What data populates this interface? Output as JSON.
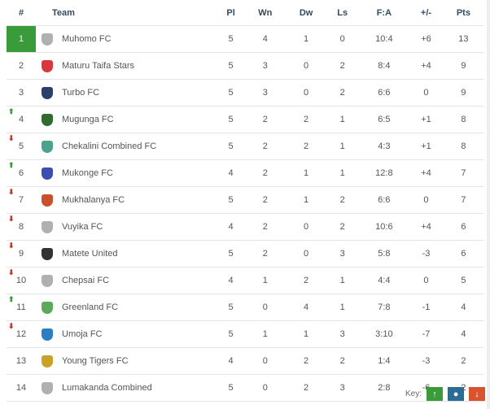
{
  "headers": [
    "#",
    "Team",
    "Pl",
    "Wn",
    "Dw",
    "Ls",
    "F:A",
    "+/-",
    "Pts"
  ],
  "rows": [
    {
      "pos": "1",
      "team": "Muhomo FC",
      "pl": "5",
      "w": "4",
      "d": "1",
      "l": "0",
      "fa": "10:4",
      "gd": "+6",
      "pts": "13",
      "move": "",
      "crest": "#b0b0b0"
    },
    {
      "pos": "2",
      "team": "Maturu Taifa Stars",
      "pl": "5",
      "w": "3",
      "d": "0",
      "l": "2",
      "fa": "8:4",
      "gd": "+4",
      "pts": "9",
      "move": "",
      "crest": "#d9363e"
    },
    {
      "pos": "3",
      "team": "Turbo FC",
      "pl": "5",
      "w": "3",
      "d": "0",
      "l": "2",
      "fa": "6:6",
      "gd": "0",
      "pts": "9",
      "move": "",
      "crest": "#2c3e6b"
    },
    {
      "pos": "4",
      "team": "Mugunga FC",
      "pl": "5",
      "w": "2",
      "d": "2",
      "l": "1",
      "fa": "6:5",
      "gd": "+1",
      "pts": "8",
      "move": "up",
      "crest": "#2e6b2e"
    },
    {
      "pos": "5",
      "team": "Chekalini Combined FC",
      "pl": "5",
      "w": "2",
      "d": "2",
      "l": "1",
      "fa": "4:3",
      "gd": "+1",
      "pts": "8",
      "move": "down",
      "crest": "#4aa38a"
    },
    {
      "pos": "6",
      "team": "Mukonge FC",
      "pl": "4",
      "w": "2",
      "d": "1",
      "l": "1",
      "fa": "12:8",
      "gd": "+4",
      "pts": "7",
      "move": "up",
      "crest": "#3b4fb0"
    },
    {
      "pos": "7",
      "team": "Mukhalanya FC",
      "pl": "5",
      "w": "2",
      "d": "1",
      "l": "2",
      "fa": "6:6",
      "gd": "0",
      "pts": "7",
      "move": "down",
      "crest": "#c8502a"
    },
    {
      "pos": "8",
      "team": "Vuyika FC",
      "pl": "4",
      "w": "2",
      "d": "0",
      "l": "2",
      "fa": "10:6",
      "gd": "+4",
      "pts": "6",
      "move": "down",
      "crest": "#b0b0b0"
    },
    {
      "pos": "9",
      "team": "Matete United",
      "pl": "5",
      "w": "2",
      "d": "0",
      "l": "3",
      "fa": "5:8",
      "gd": "-3",
      "pts": "6",
      "move": "down",
      "crest": "#333333"
    },
    {
      "pos": "10",
      "team": "Chepsai FC",
      "pl": "4",
      "w": "1",
      "d": "2",
      "l": "1",
      "fa": "4:4",
      "gd": "0",
      "pts": "5",
      "move": "down",
      "crest": "#b0b0b0"
    },
    {
      "pos": "11",
      "team": "Greenland FC",
      "pl": "5",
      "w": "0",
      "d": "4",
      "l": "1",
      "fa": "7:8",
      "gd": "-1",
      "pts": "4",
      "move": "up",
      "crest": "#5aaa5a"
    },
    {
      "pos": "12",
      "team": "Umoja FC",
      "pl": "5",
      "w": "1",
      "d": "1",
      "l": "3",
      "fa": "3:10",
      "gd": "-7",
      "pts": "4",
      "move": "down",
      "crest": "#2a7fc0"
    },
    {
      "pos": "13",
      "team": "Young Tigers FC",
      "pl": "4",
      "w": "0",
      "d": "2",
      "l": "2",
      "fa": "1:4",
      "gd": "-3",
      "pts": "2",
      "move": "",
      "crest": "#c9a227"
    },
    {
      "pos": "14",
      "team": "Lumakanda Combined",
      "pl": "5",
      "w": "0",
      "d": "2",
      "l": "3",
      "fa": "2:8",
      "gd": "-6",
      "pts": "2",
      "move": "",
      "crest": "#b0b0b0"
    }
  ],
  "key": {
    "label": "Key:",
    "up_color": "#3a9b3a",
    "same_color": "#2c6b94",
    "down_color": "#d9532f"
  }
}
